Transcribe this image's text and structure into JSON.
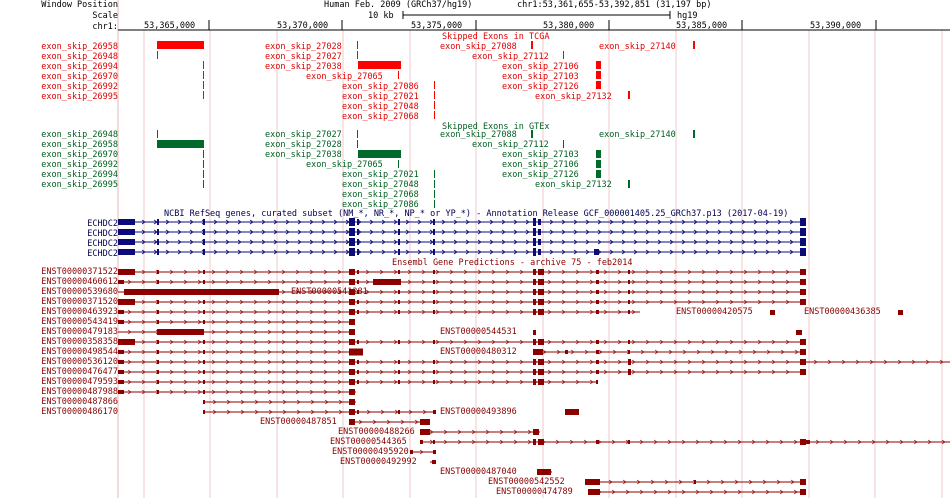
{
  "header": {
    "window_position_label": "Window Position",
    "scale_label": "Scale",
    "chrom_label": "chr1:",
    "assembly": "Human Feb. 2009 (GRCh37/hg19)",
    "position": "chr1:53,361,655-53,392,851 (31,197 bp)",
    "scale_value": "10 kb",
    "db": "hg19",
    "ticks": [
      "53,365,000",
      "53,370,000",
      "53,375,000",
      "53,380,000",
      "53,385,000",
      "53,390,000"
    ]
  },
  "tcga": {
    "title": "Skipped Exons in TCGA",
    "left_labels": [
      "exon_skip_26958",
      "exon_skip_26948",
      "exon_skip_26994",
      "exon_skip_26970",
      "exon_skip_26992",
      "exon_skip_26995"
    ],
    "items": [
      "exon_skip_27028",
      "exon_skip_27027",
      "exon_skip_27038",
      "exon_skip_27065",
      "exon_skip_27086",
      "exon_skip_27021",
      "exon_skip_27048",
      "exon_skip_27068",
      "exon_skip_27088",
      "exon_skip_27112",
      "exon_skip_27140",
      "exon_skip_27106",
      "exon_skip_27103",
      "exon_skip_27126",
      "exon_skip_27132"
    ]
  },
  "gtex": {
    "title": "Skipped Exons in GTEx",
    "left_labels": [
      "exon_skip_26948",
      "exon_skip_26958",
      "exon_skip_26970",
      "exon_skip_26992",
      "exon_skip_26994",
      "exon_skip_26995"
    ],
    "items": [
      "exon_skip_27027",
      "exon_skip_27028",
      "exon_skip_27038",
      "exon_skip_27065",
      "exon_skip_27021",
      "exon_skip_27048",
      "exon_skip_27068",
      "exon_skip_27086",
      "exon_skip_27088",
      "exon_skip_27112",
      "exon_skip_27140",
      "exon_skip_27103",
      "exon_skip_27106",
      "exon_skip_27126",
      "exon_skip_27132"
    ]
  },
  "refseq": {
    "title": "NCBI RefSeq genes, curated subset (NM_*, NR_*, NP_* or YP_*) - Annotation Release GCF_000001405.25_GRCh37.p13 (2017-04-19)",
    "left_labels": [
      "ECHDC2",
      "ECHDC2",
      "ECHDC2",
      "ECHDC2"
    ]
  },
  "ensembl": {
    "title": "Ensembl Gene Predictions - archive 75 - feb2014",
    "left_labels": [
      "ENST00000371522",
      "ENST00000460612",
      "ENST00000539680",
      "ENST00000371520",
      "ENST00000463923",
      "ENST00000543419",
      "ENST00000479183",
      "ENST00000358358",
      "ENST00000498544",
      "ENST00000536120",
      "ENST00000476477",
      "ENST00000479593",
      "ENST00000487988",
      "ENST00000487866",
      "ENST00000486170"
    ],
    "inline_labels": [
      "ENST00000541281",
      "ENST00000420575",
      "ENST00000436385",
      "ENST00000544531",
      "ENST00000480312",
      "ENST00000493896",
      "ENST00000487851",
      "ENST00000488266",
      "ENST00000544365",
      "ENST00000495920",
      "ENST00000492992",
      "ENST00000487040",
      "ENST00000542552",
      "ENST00000474789"
    ]
  },
  "colors": {
    "tcga": "#ff0000",
    "gtex": "#006a2a",
    "refseq": "#0c0c78",
    "ensembl": "#8c0000"
  }
}
